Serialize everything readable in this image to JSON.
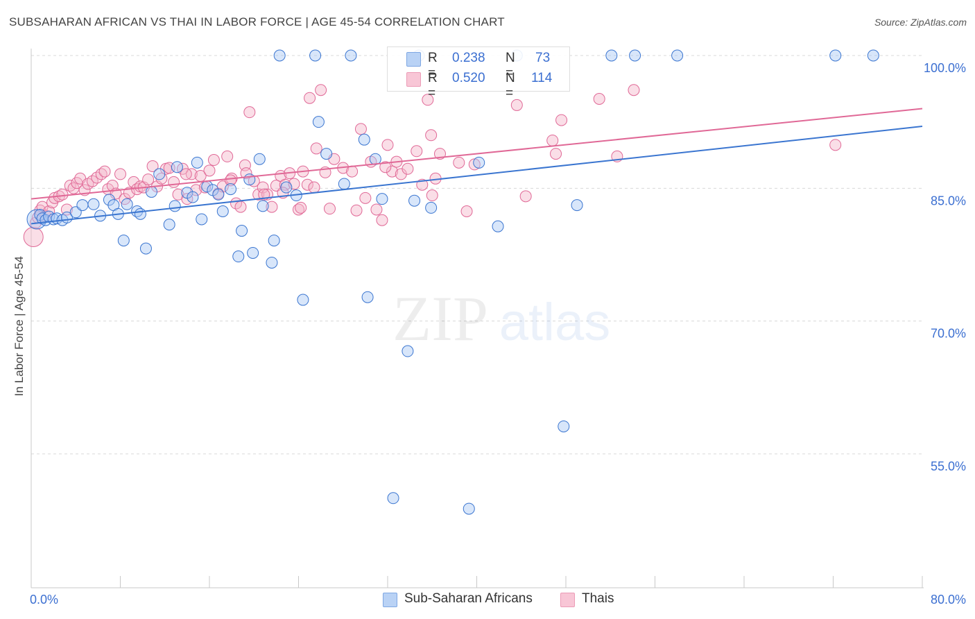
{
  "title": "SUBSAHARAN AFRICAN VS THAI IN LABOR FORCE | AGE 45-54 CORRELATION CHART",
  "source": "Source: ZipAtlas.com",
  "watermark": {
    "zip": "ZIP",
    "atlas": "atlas"
  },
  "colors": {
    "blue": "#3a75d0",
    "blue_fill": "#a9c8f3",
    "pink": "#e06896",
    "pink_fill": "#f4b5c9",
    "axis_text": "#3b6fd1",
    "grid": "#d8d8d8"
  },
  "legend": {
    "rows": [
      {
        "r_label": "R =",
        "r_value": "0.238",
        "n_label": "N =",
        "n_value": "73"
      },
      {
        "r_label": "R =",
        "r_value": "0.520",
        "n_label": "N =",
        "n_value": "114"
      }
    ]
  },
  "bottom_legend": [
    "Sub-Saharan Africans",
    "Thais"
  ],
  "chart_data": {
    "type": "scatter",
    "title": "SUBSAHARAN AFRICAN VS THAI IN LABOR FORCE | AGE 45-54 CORRELATION CHART",
    "xlabel": "",
    "ylabel": "In Labor Force | Age 45-54",
    "xlim": [
      0,
      80
    ],
    "ylim": [
      40,
      102
    ],
    "x_tick_labels": [
      "0.0%",
      "80.0%"
    ],
    "y_ticks": [
      55,
      70,
      85,
      100
    ],
    "y_tick_labels": [
      "55.0%",
      "70.0%",
      "85.0%",
      "100.0%"
    ],
    "grid": true,
    "legend_placement": "top-center",
    "series": [
      {
        "name": "Sub-Saharan Africans",
        "r": 0.238,
        "n": 73,
        "trend": {
          "x": [
            0,
            80
          ],
          "y": [
            81.0,
            92.0
          ]
        },
        "points": [
          [
            0.5,
            81.5
          ],
          [
            0.8,
            82
          ],
          [
            1,
            81.6
          ],
          [
            1.3,
            81.4
          ],
          [
            1.6,
            81.8
          ],
          [
            2,
            81.5
          ],
          [
            2.3,
            81.6
          ],
          [
            2.8,
            81.4
          ],
          [
            3.2,
            81.7
          ],
          [
            4,
            82.3
          ],
          [
            4.6,
            83.1
          ],
          [
            5.6,
            83.2
          ],
          [
            6.2,
            81.9
          ],
          [
            7,
            83.7
          ],
          [
            7.4,
            83.1
          ],
          [
            7.8,
            82.1
          ],
          [
            8.3,
            79.1
          ],
          [
            8.6,
            83.2
          ],
          [
            9.5,
            82.4
          ],
          [
            9.8,
            82.1
          ],
          [
            10.3,
            78.2
          ],
          [
            10.8,
            84.6
          ],
          [
            11.5,
            86.6
          ],
          [
            12.4,
            80.9
          ],
          [
            12.9,
            83
          ],
          [
            13.1,
            87.4
          ],
          [
            14,
            84.5
          ],
          [
            14.5,
            84
          ],
          [
            14.9,
            87.9
          ],
          [
            15.3,
            81.5
          ],
          [
            15.8,
            85.2
          ],
          [
            16.3,
            84.8
          ],
          [
            16.8,
            84.3
          ],
          [
            17.2,
            82.4
          ],
          [
            17.9,
            84.9
          ],
          [
            18.6,
            77.3
          ],
          [
            18.9,
            80.2
          ],
          [
            19.6,
            86
          ],
          [
            19.9,
            77.7
          ],
          [
            20.5,
            88.3
          ],
          [
            20.8,
            83
          ],
          [
            21.6,
            76.6
          ],
          [
            21.8,
            79.1
          ],
          [
            22.3,
            100
          ],
          [
            22.9,
            85.1
          ],
          [
            23.8,
            84.2
          ],
          [
            24.4,
            72.4
          ],
          [
            25.5,
            100
          ],
          [
            25.8,
            92.5
          ],
          [
            26.5,
            88.9
          ],
          [
            28.1,
            85.5
          ],
          [
            28.7,
            100
          ],
          [
            29.9,
            90.5
          ],
          [
            30.2,
            72.7
          ],
          [
            30.9,
            88.3
          ],
          [
            31.5,
            83.8
          ],
          [
            32.5,
            50
          ],
          [
            33.8,
            66.6
          ],
          [
            34.4,
            83.6
          ],
          [
            34.8,
            100
          ],
          [
            35.9,
            82.8
          ],
          [
            39.3,
            48.8
          ],
          [
            40.2,
            87.9
          ],
          [
            41.9,
            80.7
          ],
          [
            43.6,
            100
          ],
          [
            47.8,
            58.1
          ],
          [
            49,
            83.1
          ],
          [
            52.1,
            100
          ],
          [
            54.2,
            100
          ],
          [
            58,
            100
          ],
          [
            72.2,
            100
          ],
          [
            75.6,
            100
          ]
        ]
      },
      {
        "name": "Thais",
        "r": 0.52,
        "n": 114,
        "trend": {
          "x": [
            0,
            80
          ],
          "y": [
            83.8,
            94.0
          ]
        },
        "points": [
          [
            0.2,
            79.5
          ],
          [
            0.4,
            81.1
          ],
          [
            0.6,
            81.7
          ],
          [
            0.8,
            82.5
          ],
          [
            1,
            82.9
          ],
          [
            1.3,
            81.9
          ],
          [
            1.6,
            82.4
          ],
          [
            1.9,
            83.4
          ],
          [
            2.1,
            83.9
          ],
          [
            2.5,
            84.1
          ],
          [
            2.8,
            84.3
          ],
          [
            3.2,
            82.6
          ],
          [
            3.5,
            85.3
          ],
          [
            3.8,
            85
          ],
          [
            4.1,
            85.6
          ],
          [
            4.4,
            86.1
          ],
          [
            4.8,
            84.8
          ],
          [
            5.1,
            85.5
          ],
          [
            5.5,
            85.8
          ],
          [
            5.9,
            86.2
          ],
          [
            6.3,
            86.6
          ],
          [
            6.6,
            86.9
          ],
          [
            6.9,
            84.9
          ],
          [
            7.3,
            85.3
          ],
          [
            7.6,
            84.4
          ],
          [
            8,
            86.6
          ],
          [
            8.4,
            83.8
          ],
          [
            8.8,
            84.5
          ],
          [
            9.2,
            85.7
          ],
          [
            9.5,
            84.9
          ],
          [
            9.8,
            85.2
          ],
          [
            10.1,
            85.1
          ],
          [
            10.5,
            86
          ],
          [
            10.9,
            87.5
          ],
          [
            11.3,
            85.2
          ],
          [
            11.7,
            86.1
          ],
          [
            12.1,
            87.2
          ],
          [
            12.4,
            87.3
          ],
          [
            12.8,
            85.7
          ],
          [
            13.2,
            84.3
          ],
          [
            13.6,
            87.2
          ],
          [
            14,
            83.8
          ],
          [
            14.4,
            86.6
          ],
          [
            14.8,
            84.8
          ],
          [
            15.2,
            86.4
          ],
          [
            15.6,
            85.1
          ],
          [
            16,
            87
          ],
          [
            16.4,
            88.2
          ],
          [
            16.8,
            84.4
          ],
          [
            17.2,
            85.2
          ],
          [
            17.6,
            88.6
          ],
          [
            18,
            86.1
          ],
          [
            18.4,
            83.3
          ],
          [
            18.8,
            82.9
          ],
          [
            19.2,
            87.6
          ],
          [
            19.6,
            93.6
          ],
          [
            20,
            85.8
          ],
          [
            20.4,
            84.3
          ],
          [
            20.8,
            85.1
          ],
          [
            21.2,
            84.3
          ],
          [
            21.6,
            82.9
          ],
          [
            22,
            85.3
          ],
          [
            22.4,
            86.4
          ],
          [
            22.8,
            85.4
          ],
          [
            23.2,
            86.7
          ],
          [
            23.6,
            85.5
          ],
          [
            24,
            82.6
          ],
          [
            24.4,
            86.9
          ],
          [
            24.8,
            85.4
          ],
          [
            25,
            95.2
          ],
          [
            25.6,
            89.5
          ],
          [
            26,
            96.1
          ],
          [
            26.4,
            86.8
          ],
          [
            26.8,
            82.7
          ],
          [
            27.2,
            88.3
          ],
          [
            28,
            87.3
          ],
          [
            28.8,
            86.9
          ],
          [
            29.2,
            82.5
          ],
          [
            29.6,
            91.7
          ],
          [
            30,
            83.9
          ],
          [
            30.5,
            88
          ],
          [
            31,
            82.6
          ],
          [
            31.5,
            81.4
          ],
          [
            32,
            89.9
          ],
          [
            32.4,
            86.9
          ],
          [
            32.8,
            88
          ],
          [
            33.2,
            86.6
          ],
          [
            33.8,
            87.2
          ],
          [
            34.6,
            89.2
          ],
          [
            35.1,
            85.4
          ],
          [
            35.6,
            95
          ],
          [
            35.9,
            91
          ],
          [
            36.3,
            86.1
          ],
          [
            38.4,
            87.9
          ],
          [
            39.1,
            82.4
          ],
          [
            39.8,
            87.7
          ],
          [
            43.6,
            94.4
          ],
          [
            44.4,
            84.1
          ],
          [
            46.8,
            90.4
          ],
          [
            47.1,
            88.9
          ],
          [
            47.6,
            92.7
          ],
          [
            51,
            95.1
          ],
          [
            52.6,
            88.6
          ],
          [
            54.1,
            96.1
          ],
          [
            72.2,
            89.9
          ],
          [
            22.6,
            84.5
          ],
          [
            17.9,
            85.9
          ],
          [
            13.9,
            86.6
          ],
          [
            20.9,
            84.3
          ],
          [
            25.4,
            85.1
          ],
          [
            31.8,
            87.4
          ],
          [
            36.7,
            88.9
          ],
          [
            24.2,
            82.8
          ],
          [
            36,
            84.2
          ],
          [
            19.3,
            86.7
          ]
        ]
      }
    ]
  }
}
